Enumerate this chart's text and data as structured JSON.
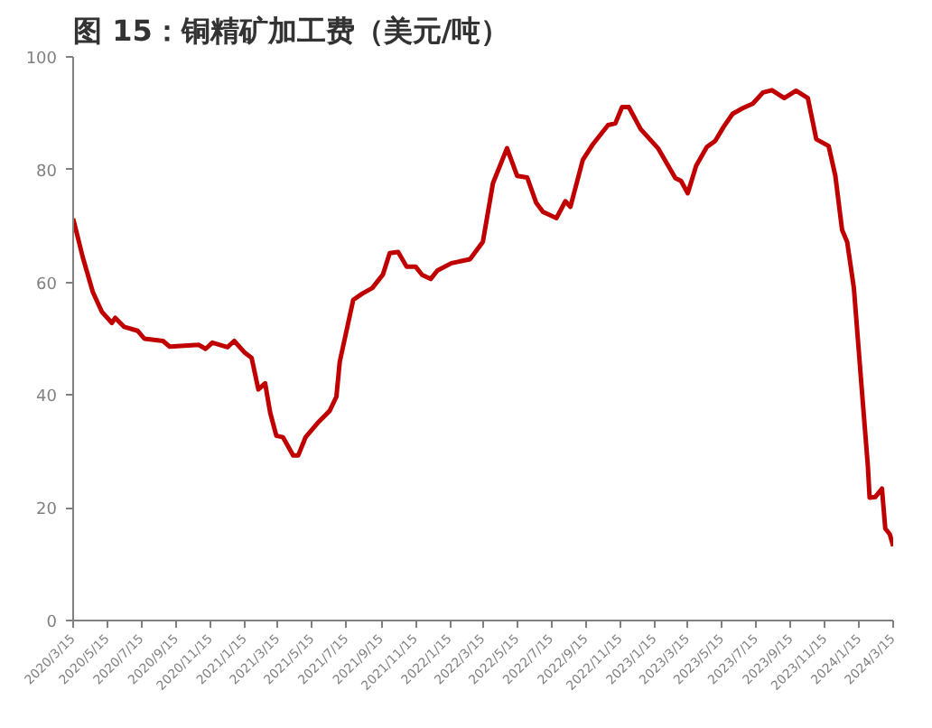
{
  "chart_data": {
    "type": "line",
    "title": "图 15：铜精矿加工费（美元/吨）",
    "series": [
      {
        "color": "#c00000",
        "values": [
          71.3,
          64.5,
          58.3,
          54.8,
          52.8,
          53.7,
          52.1,
          51.4,
          50.0,
          49.6,
          48.6,
          48.9,
          48.2,
          49.3,
          48.5,
          49.6,
          47.5,
          46.6,
          41.0,
          42.1,
          36.9,
          32.8,
          32.5,
          29.3,
          29.3,
          32.5,
          35.3,
          37.2,
          39.7,
          45.9,
          56.9,
          58.0,
          59.0,
          61.4,
          65.2,
          65.4,
          62.8,
          62.8,
          61.3,
          60.6,
          62.1,
          63.4,
          64.1,
          67.2,
          77.6,
          83.8,
          78.9,
          78.6,
          74.1,
          72.5,
          71.4,
          74.4,
          73.4,
          81.7,
          84.5,
          87.9,
          88.2,
          91.1,
          91.1,
          87.2,
          83.8,
          78.5,
          78.0,
          75.8,
          80.7,
          84.0,
          85.1,
          87.6,
          89.9,
          90.9,
          91.7,
          93.7,
          94.1,
          92.7,
          94.0,
          92.7,
          85.4,
          84.2,
          78.9,
          69.3,
          67.2,
          59.0,
          42.4,
          27.3,
          21.8,
          21.9,
          23.4,
          16.3,
          15.3,
          13.2
        ]
      }
    ],
    "x": [
      "2020-03-15",
      "2020-04-01",
      "2020-04-19",
      "2020-05-05",
      "2020-05-23",
      "2020-05-29",
      "2020-06-14",
      "2020-07-08",
      "2020-07-20",
      "2020-08-22",
      "2020-09-03",
      "2020-10-25",
      "2020-11-06",
      "2020-11-18",
      "2020-12-15",
      "2020-12-27",
      "2021-01-15",
      "2021-01-27",
      "2021-02-08",
      "2021-02-20",
      "2021-03-01",
      "2021-03-12",
      "2021-03-24",
      "2021-04-11",
      "2021-04-20",
      "2021-05-03",
      "2021-05-27",
      "2021-06-15",
      "2021-06-27",
      "2021-07-03",
      "2021-07-27",
      "2021-08-12",
      "2021-08-30",
      "2021-09-18",
      "2021-09-30",
      "2021-10-15",
      "2021-10-30",
      "2021-11-15",
      "2021-11-27",
      "2021-12-12",
      "2021-12-24",
      "2022-01-18",
      "2022-02-20",
      "2022-03-15",
      "2022-04-02",
      "2022-04-27",
      "2022-05-15",
      "2022-06-02",
      "2022-06-18",
      "2022-06-30",
      "2022-07-24",
      "2022-08-09",
      "2022-08-18",
      "2022-09-09",
      "2022-09-27",
      "2022-10-24",
      "2022-11-06",
      "2022-11-18",
      "2022-11-30",
      "2022-12-21",
      "2023-01-21",
      "2023-02-21",
      "2023-03-03",
      "2023-03-15",
      "2023-03-30",
      "2023-04-18",
      "2023-05-03",
      "2023-05-18",
      "2023-06-03",
      "2023-06-21",
      "2023-07-09",
      "2023-07-27",
      "2023-08-12",
      "2023-09-03",
      "2023-09-24",
      "2023-10-15",
      "2023-10-30",
      "2023-11-21",
      "2023-12-03",
      "2023-12-15",
      "2023-12-24",
      "2024-01-05",
      "2024-01-18",
      "2024-01-30",
      "2024-02-02",
      "2024-02-12",
      "2024-02-24",
      "2024-03-01",
      "2024-03-09",
      "2024-03-15"
    ],
    "xlim": [
      "2020-03-15",
      "2024-03-15"
    ],
    "xticks": [
      {
        "value": "2020-03-15",
        "label": "2020/3/15"
      },
      {
        "value": "2020-05-15",
        "label": "2020/5/15"
      },
      {
        "value": "2020-07-15",
        "label": "2020/7/15"
      },
      {
        "value": "2020-09-15",
        "label": "2020/9/15"
      },
      {
        "value": "2020-11-15",
        "label": "2020/11/15"
      },
      {
        "value": "2021-01-15",
        "label": "2021/1/15"
      },
      {
        "value": "2021-03-15",
        "label": "2021/3/15"
      },
      {
        "value": "2021-05-15",
        "label": "2021/5/15"
      },
      {
        "value": "2021-07-15",
        "label": "2021/7/15"
      },
      {
        "value": "2021-09-15",
        "label": "2021/9/15"
      },
      {
        "value": "2021-11-15",
        "label": "2021/11/15"
      },
      {
        "value": "2022-01-15",
        "label": "2022/1/15"
      },
      {
        "value": "2022-03-15",
        "label": "2022/3/15"
      },
      {
        "value": "2022-05-15",
        "label": "2022/5/15"
      },
      {
        "value": "2022-07-15",
        "label": "2022/7/15"
      },
      {
        "value": "2022-09-15",
        "label": "2022/9/15"
      },
      {
        "value": "2022-11-15",
        "label": "2022/11/15"
      },
      {
        "value": "2023-01-15",
        "label": "2023/1/15"
      },
      {
        "value": "2023-03-15",
        "label": "2023/3/15"
      },
      {
        "value": "2023-05-15",
        "label": "2023/5/15"
      },
      {
        "value": "2023-07-15",
        "label": "2023/7/15"
      },
      {
        "value": "2023-09-15",
        "label": "2023/9/15"
      },
      {
        "value": "2023-11-15",
        "label": "2023/11/15"
      },
      {
        "value": "2024-01-15",
        "label": "2024/1/15"
      },
      {
        "value": "2024-03-15",
        "label": "2024/3/15"
      }
    ],
    "ylim": [
      0,
      100
    ],
    "yticks": [
      0,
      20,
      40,
      60,
      80,
      100
    ],
    "grid": false
  }
}
